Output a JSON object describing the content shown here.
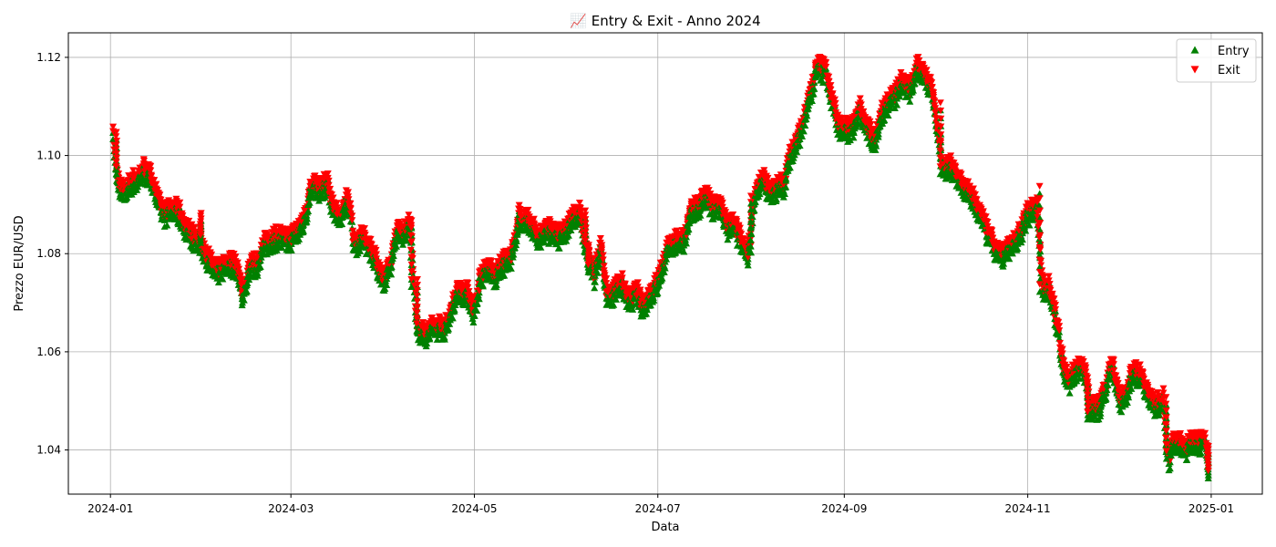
{
  "chart_data": {
    "type": "scatter",
    "title": "📈 Entry & Exit - Anno 2024",
    "xlabel": "Data",
    "ylabel": "Prezzo EUR/USD",
    "x_range": [
      "2023-12-18",
      "2025-01-18"
    ],
    "ylim": [
      1.031,
      1.125
    ],
    "x_ticks": [
      "2024-01",
      "2024-03",
      "2024-05",
      "2024-07",
      "2024-09",
      "2024-11",
      "2025-01"
    ],
    "x_tick_dates": [
      "2024-01-01",
      "2024-03-01",
      "2024-05-01",
      "2024-07-01",
      "2024-09-01",
      "2024-11-01",
      "2025-01-01"
    ],
    "y_ticks": [
      1.04,
      1.06,
      1.08,
      1.1,
      1.12
    ],
    "y_tick_labels": [
      "1.04",
      "1.06",
      "1.08",
      "1.10",
      "1.12"
    ],
    "grid": true,
    "legend_position": "top-right",
    "path": [
      [
        "2024-01-02",
        1.1035
      ],
      [
        "2024-01-03",
        1.096
      ],
      [
        "2024-01-05",
        1.092
      ],
      [
        "2024-01-08",
        1.0945
      ],
      [
        "2024-01-10",
        1.095
      ],
      [
        "2024-01-12",
        1.097
      ],
      [
        "2024-01-15",
        1.095
      ],
      [
        "2024-01-17",
        1.09
      ],
      [
        "2024-01-19",
        1.088
      ],
      [
        "2024-01-22",
        1.089
      ],
      [
        "2024-01-24",
        1.088
      ],
      [
        "2024-01-26",
        1.085
      ],
      [
        "2024-01-29",
        1.083
      ],
      [
        "2024-01-31",
        1.082
      ],
      [
        "2024-02-02",
        1.0795
      ],
      [
        "2024-02-05",
        1.076
      ],
      [
        "2024-02-07",
        1.077
      ],
      [
        "2024-02-09",
        1.078
      ],
      [
        "2024-02-12",
        1.0775
      ],
      [
        "2024-02-14",
        1.071
      ],
      [
        "2024-02-16",
        1.077
      ],
      [
        "2024-02-19",
        1.078
      ],
      [
        "2024-02-21",
        1.0815
      ],
      [
        "2024-02-23",
        1.0825
      ],
      [
        "2024-02-26",
        1.0835
      ],
      [
        "2024-02-28",
        1.0825
      ],
      [
        "2024-03-01",
        1.083
      ],
      [
        "2024-03-04",
        1.085
      ],
      [
        "2024-03-06",
        1.088
      ],
      [
        "2024-03-08",
        1.094
      ],
      [
        "2024-03-11",
        1.093
      ],
      [
        "2024-03-13",
        1.0945
      ],
      [
        "2024-03-15",
        1.089
      ],
      [
        "2024-03-18",
        1.087
      ],
      [
        "2024-03-20",
        1.092
      ],
      [
        "2024-03-22",
        1.082
      ],
      [
        "2024-03-25",
        1.083
      ],
      [
        "2024-03-27",
        1.0815
      ],
      [
        "2024-03-29",
        1.079
      ],
      [
        "2024-04-01",
        1.074
      ],
      [
        "2024-04-03",
        1.077
      ],
      [
        "2024-04-05",
        1.084
      ],
      [
        "2024-04-08",
        1.0845
      ],
      [
        "2024-04-10",
        1.086
      ],
      [
        "2024-04-11",
        1.073
      ],
      [
        "2024-04-12",
        1.065
      ],
      [
        "2024-04-15",
        1.063
      ],
      [
        "2024-04-17",
        1.065
      ],
      [
        "2024-04-19",
        1.065
      ],
      [
        "2024-04-22",
        1.065
      ],
      [
        "2024-04-24",
        1.07
      ],
      [
        "2024-04-26",
        1.0725
      ],
      [
        "2024-04-29",
        1.0715
      ],
      [
        "2024-05-01",
        1.068
      ],
      [
        "2024-05-03",
        1.075
      ],
      [
        "2024-05-06",
        1.077
      ],
      [
        "2024-05-08",
        1.075
      ],
      [
        "2024-05-10",
        1.0775
      ],
      [
        "2024-05-13",
        1.079
      ],
      [
        "2024-05-15",
        1.083
      ],
      [
        "2024-05-16",
        1.088
      ],
      [
        "2024-05-17",
        1.087
      ],
      [
        "2024-05-20",
        1.086
      ],
      [
        "2024-05-22",
        1.083
      ],
      [
        "2024-05-24",
        1.084
      ],
      [
        "2024-05-27",
        1.085
      ],
      [
        "2024-05-29",
        1.083
      ],
      [
        "2024-05-31",
        1.084
      ],
      [
        "2024-06-03",
        1.088
      ],
      [
        "2024-06-05",
        1.088
      ],
      [
        "2024-06-07",
        1.081
      ],
      [
        "2024-06-10",
        1.075
      ],
      [
        "2024-06-12",
        1.082
      ],
      [
        "2024-06-14",
        1.071
      ],
      [
        "2024-06-17",
        1.0725
      ],
      [
        "2024-06-19",
        1.074
      ],
      [
        "2024-06-21",
        1.07
      ],
      [
        "2024-06-24",
        1.072
      ],
      [
        "2024-06-26",
        1.069
      ],
      [
        "2024-06-28",
        1.071
      ],
      [
        "2024-07-01",
        1.074
      ],
      [
        "2024-07-03",
        1.078
      ],
      [
        "2024-07-05",
        1.082
      ],
      [
        "2024-07-08",
        1.0825
      ],
      [
        "2024-07-10",
        1.083
      ],
      [
        "2024-07-12",
        1.088
      ],
      [
        "2024-07-15",
        1.09
      ],
      [
        "2024-07-17",
        1.092
      ],
      [
        "2024-07-19",
        1.089
      ],
      [
        "2024-07-22",
        1.0895
      ],
      [
        "2024-07-24",
        1.085
      ],
      [
        "2024-07-26",
        1.086
      ],
      [
        "2024-07-29",
        1.082
      ],
      [
        "2024-07-31",
        1.08
      ],
      [
        "2024-08-02",
        1.091
      ],
      [
        "2024-08-05",
        1.095
      ],
      [
        "2024-08-07",
        1.0925
      ],
      [
        "2024-08-09",
        1.093
      ],
      [
        "2024-08-12",
        1.094
      ],
      [
        "2024-08-14",
        1.1
      ],
      [
        "2024-08-16",
        1.102
      ],
      [
        "2024-08-19",
        1.108
      ],
      [
        "2024-08-21",
        1.113
      ],
      [
        "2024-08-23",
        1.118
      ],
      [
        "2024-08-26",
        1.117
      ],
      [
        "2024-08-28",
        1.111
      ],
      [
        "2024-08-30",
        1.106
      ],
      [
        "2024-09-02",
        1.105
      ],
      [
        "2024-09-04",
        1.106
      ],
      [
        "2024-09-06",
        1.11
      ],
      [
        "2024-09-09",
        1.105
      ],
      [
        "2024-09-11",
        1.103
      ],
      [
        "2024-09-13",
        1.108
      ],
      [
        "2024-09-16",
        1.111
      ],
      [
        "2024-09-18",
        1.112
      ],
      [
        "2024-09-20",
        1.115
      ],
      [
        "2024-09-23",
        1.113
      ],
      [
        "2024-09-25",
        1.118
      ],
      [
        "2024-09-27",
        1.117
      ],
      [
        "2024-09-30",
        1.114
      ],
      [
        "2024-10-02",
        1.105
      ],
      [
        "2024-10-04",
        1.097
      ],
      [
        "2024-10-07",
        1.0975
      ],
      [
        "2024-10-09",
        1.095
      ],
      [
        "2024-10-11",
        1.093
      ],
      [
        "2024-10-14",
        1.091
      ],
      [
        "2024-10-16",
        1.088
      ],
      [
        "2024-10-18",
        1.085
      ],
      [
        "2024-10-21",
        1.081
      ],
      [
        "2024-10-23",
        1.079
      ],
      [
        "2024-10-25",
        1.081
      ],
      [
        "2024-10-28",
        1.082
      ],
      [
        "2024-10-30",
        1.085
      ],
      [
        "2024-11-01",
        1.088
      ],
      [
        "2024-11-04",
        1.09
      ],
      [
        "2024-11-06",
        1.073
      ],
      [
        "2024-11-08",
        1.073
      ],
      [
        "2024-11-11",
        1.065
      ],
      [
        "2024-11-13",
        1.056
      ],
      [
        "2024-11-15",
        1.054
      ],
      [
        "2024-11-18",
        1.057
      ],
      [
        "2024-11-20",
        1.056
      ],
      [
        "2024-11-22",
        1.048
      ],
      [
        "2024-11-25",
        1.049
      ],
      [
        "2024-11-27",
        1.053
      ],
      [
        "2024-11-29",
        1.057
      ],
      [
        "2024-12-02",
        1.05
      ],
      [
        "2024-12-04",
        1.052
      ],
      [
        "2024-12-06",
        1.056
      ],
      [
        "2024-12-09",
        1.055
      ],
      [
        "2024-12-11",
        1.051
      ],
      [
        "2024-12-13",
        1.049
      ],
      [
        "2024-12-16",
        1.05
      ],
      [
        "2024-12-18",
        1.038
      ],
      [
        "2024-12-20",
        1.042
      ],
      [
        "2024-12-23",
        1.04
      ],
      [
        "2024-12-25",
        1.041
      ],
      [
        "2024-12-27",
        1.042
      ],
      [
        "2024-12-30",
        1.041
      ],
      [
        "2024-12-31",
        1.036
      ]
    ],
    "jumps": [
      [
        "2024-01-03",
        1.104,
        1.097
      ],
      [
        "2024-01-31",
        1.0875,
        1.083
      ],
      [
        "2024-04-10",
        1.086,
        1.074
      ],
      [
        "2024-04-12",
        1.074,
        1.065
      ],
      [
        "2024-06-07",
        1.088,
        1.081
      ],
      [
        "2024-06-08",
        1.081,
        1.077
      ],
      [
        "2024-08-01",
        1.081,
        1.091
      ],
      [
        "2024-10-03",
        1.11,
        1.097
      ],
      [
        "2024-11-05",
        1.093,
        1.073
      ],
      [
        "2024-11-21",
        1.054,
        1.047
      ],
      [
        "2024-12-17",
        1.05,
        1.039
      ],
      [
        "2024-12-31",
        1.04,
        1.035
      ]
    ],
    "spread": 0.0026,
    "series": [
      {
        "name": "Entry",
        "marker": "triangle-up",
        "color": "#008000"
      },
      {
        "name": "Exit",
        "marker": "triangle-down",
        "color": "#ff0000"
      }
    ]
  }
}
